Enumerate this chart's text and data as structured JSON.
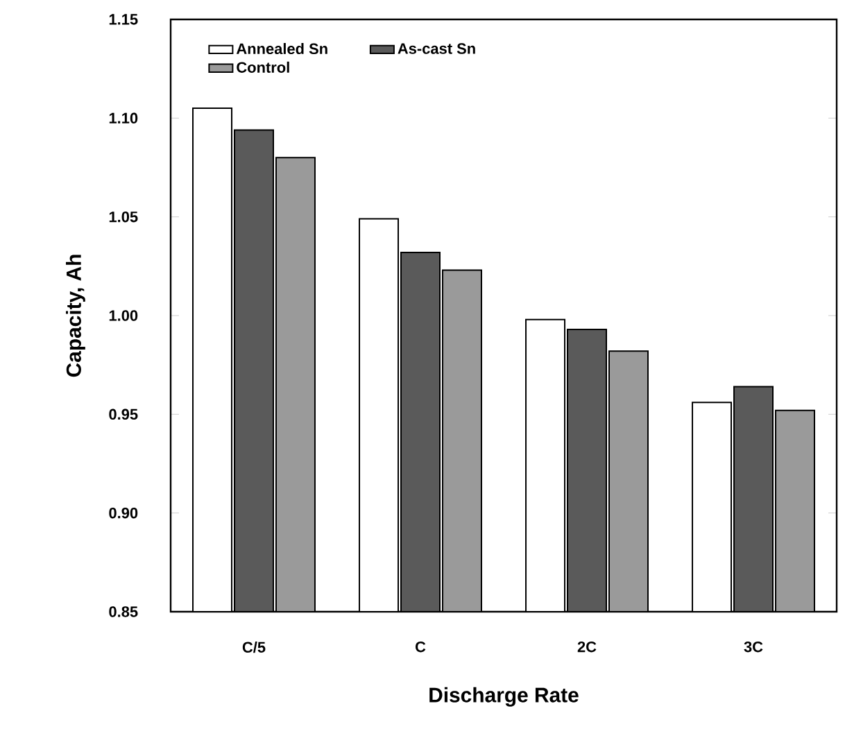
{
  "chart_data": {
    "type": "bar",
    "xlabel": "Discharge Rate",
    "ylabel": "Capacity, Ah",
    "categories": [
      "C/5",
      "C",
      "2C",
      "3C"
    ],
    "series": [
      {
        "name": "Annealed Sn",
        "color": "#ffffff",
        "values": [
          1.105,
          1.049,
          0.998,
          0.956
        ]
      },
      {
        "name": "As-cast Sn",
        "color": "#5a5a5a",
        "values": [
          1.094,
          1.032,
          0.993,
          0.964
        ]
      },
      {
        "name": "Control",
        "color": "#9a9a9a",
        "values": [
          1.08,
          1.023,
          0.982,
          0.952
        ]
      }
    ],
    "ylim": [
      0.85,
      1.15
    ],
    "yticks": [
      0.85,
      {
        "value": 0.9,
        "label": "0.90"
      },
      0.95,
      {
        "value": 1.0,
        "label": "1.00"
      },
      1.05,
      {
        "value": 1.1,
        "label": "1.10"
      },
      1.15
    ],
    "legend": "top left",
    "grid": false
  }
}
